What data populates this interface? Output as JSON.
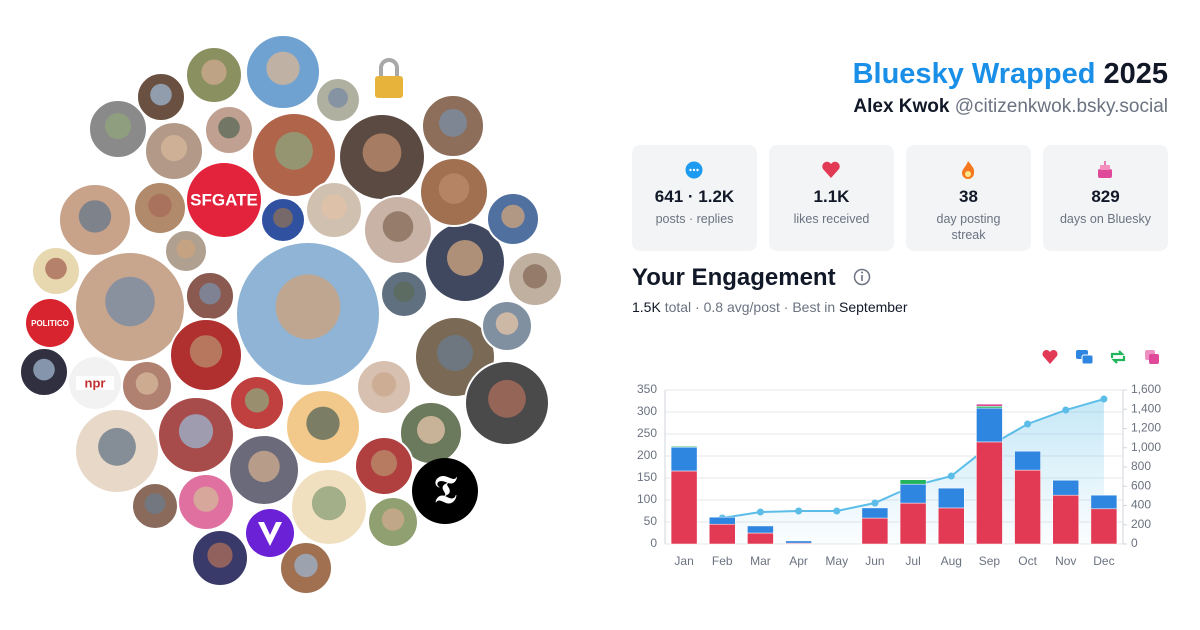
{
  "header": {
    "title": "Bluesky Wrapped",
    "year": "2025",
    "name": "Alex Kwok",
    "handle": "@citizenkwok.bsky.social"
  },
  "logos": [
    "SFGATE",
    "POLITICO",
    "npr"
  ],
  "stats": [
    {
      "value": "641 · 1.2K",
      "label": "posts · replies"
    },
    {
      "value": "1.1K",
      "label": "likes received"
    },
    {
      "value": "38",
      "label": "day posting streak"
    },
    {
      "value": "829",
      "label": "days on Bluesky"
    }
  ],
  "engagement": {
    "title": "Your Engagement",
    "total": "1.5K",
    "summary": "total · 0.8 avg/post · Best in",
    "best": "September"
  },
  "chart_data": {
    "type": "bar",
    "stacked": true,
    "grid": true,
    "categories": [
      "Jan",
      "Feb",
      "Mar",
      "Apr",
      "May",
      "Jun",
      "Jul",
      "Aug",
      "Sep",
      "Oct",
      "Nov",
      "Dec"
    ],
    "series": [
      {
        "color": "#e23a55",
        "values": [
          166,
          45,
          25,
          2,
          0,
          59,
          93,
          82,
          232,
          168,
          111,
          80
        ]
      },
      {
        "color": "#2f86e0",
        "values": [
          54,
          16,
          16,
          5,
          0,
          23,
          43,
          45,
          77,
          43,
          34,
          31
        ]
      },
      {
        "color": "#22b45a",
        "values": [
          2,
          0,
          0,
          0,
          0,
          0,
          10,
          0,
          4,
          0,
          0,
          0
        ]
      },
      {
        "color": "#e0489a",
        "values": [
          0,
          0,
          0,
          0,
          0,
          0,
          0,
          0,
          5,
          0,
          0,
          0
        ]
      },
      {
        "type": "line",
        "axis": "y2",
        "color": "#5bbde8",
        "values": [
          null,
          270,
          332,
          343,
          343,
          426,
          603,
          706,
          1018,
          1247,
          1392,
          1506
        ]
      }
    ],
    "ylim": [
      0,
      350
    ],
    "yticks": [
      0,
      50,
      100,
      150,
      200,
      250,
      300,
      350
    ],
    "y2lim": [
      0,
      1600
    ],
    "y2ticks": [
      0,
      200,
      400,
      600,
      800,
      {
        "value": 1000,
        "label": "1,000"
      },
      {
        "value": 1200,
        "label": "1,200"
      },
      {
        "value": 1400,
        "label": "1,400"
      },
      {
        "value": 1600,
        "label": "1,600"
      }
    ]
  }
}
